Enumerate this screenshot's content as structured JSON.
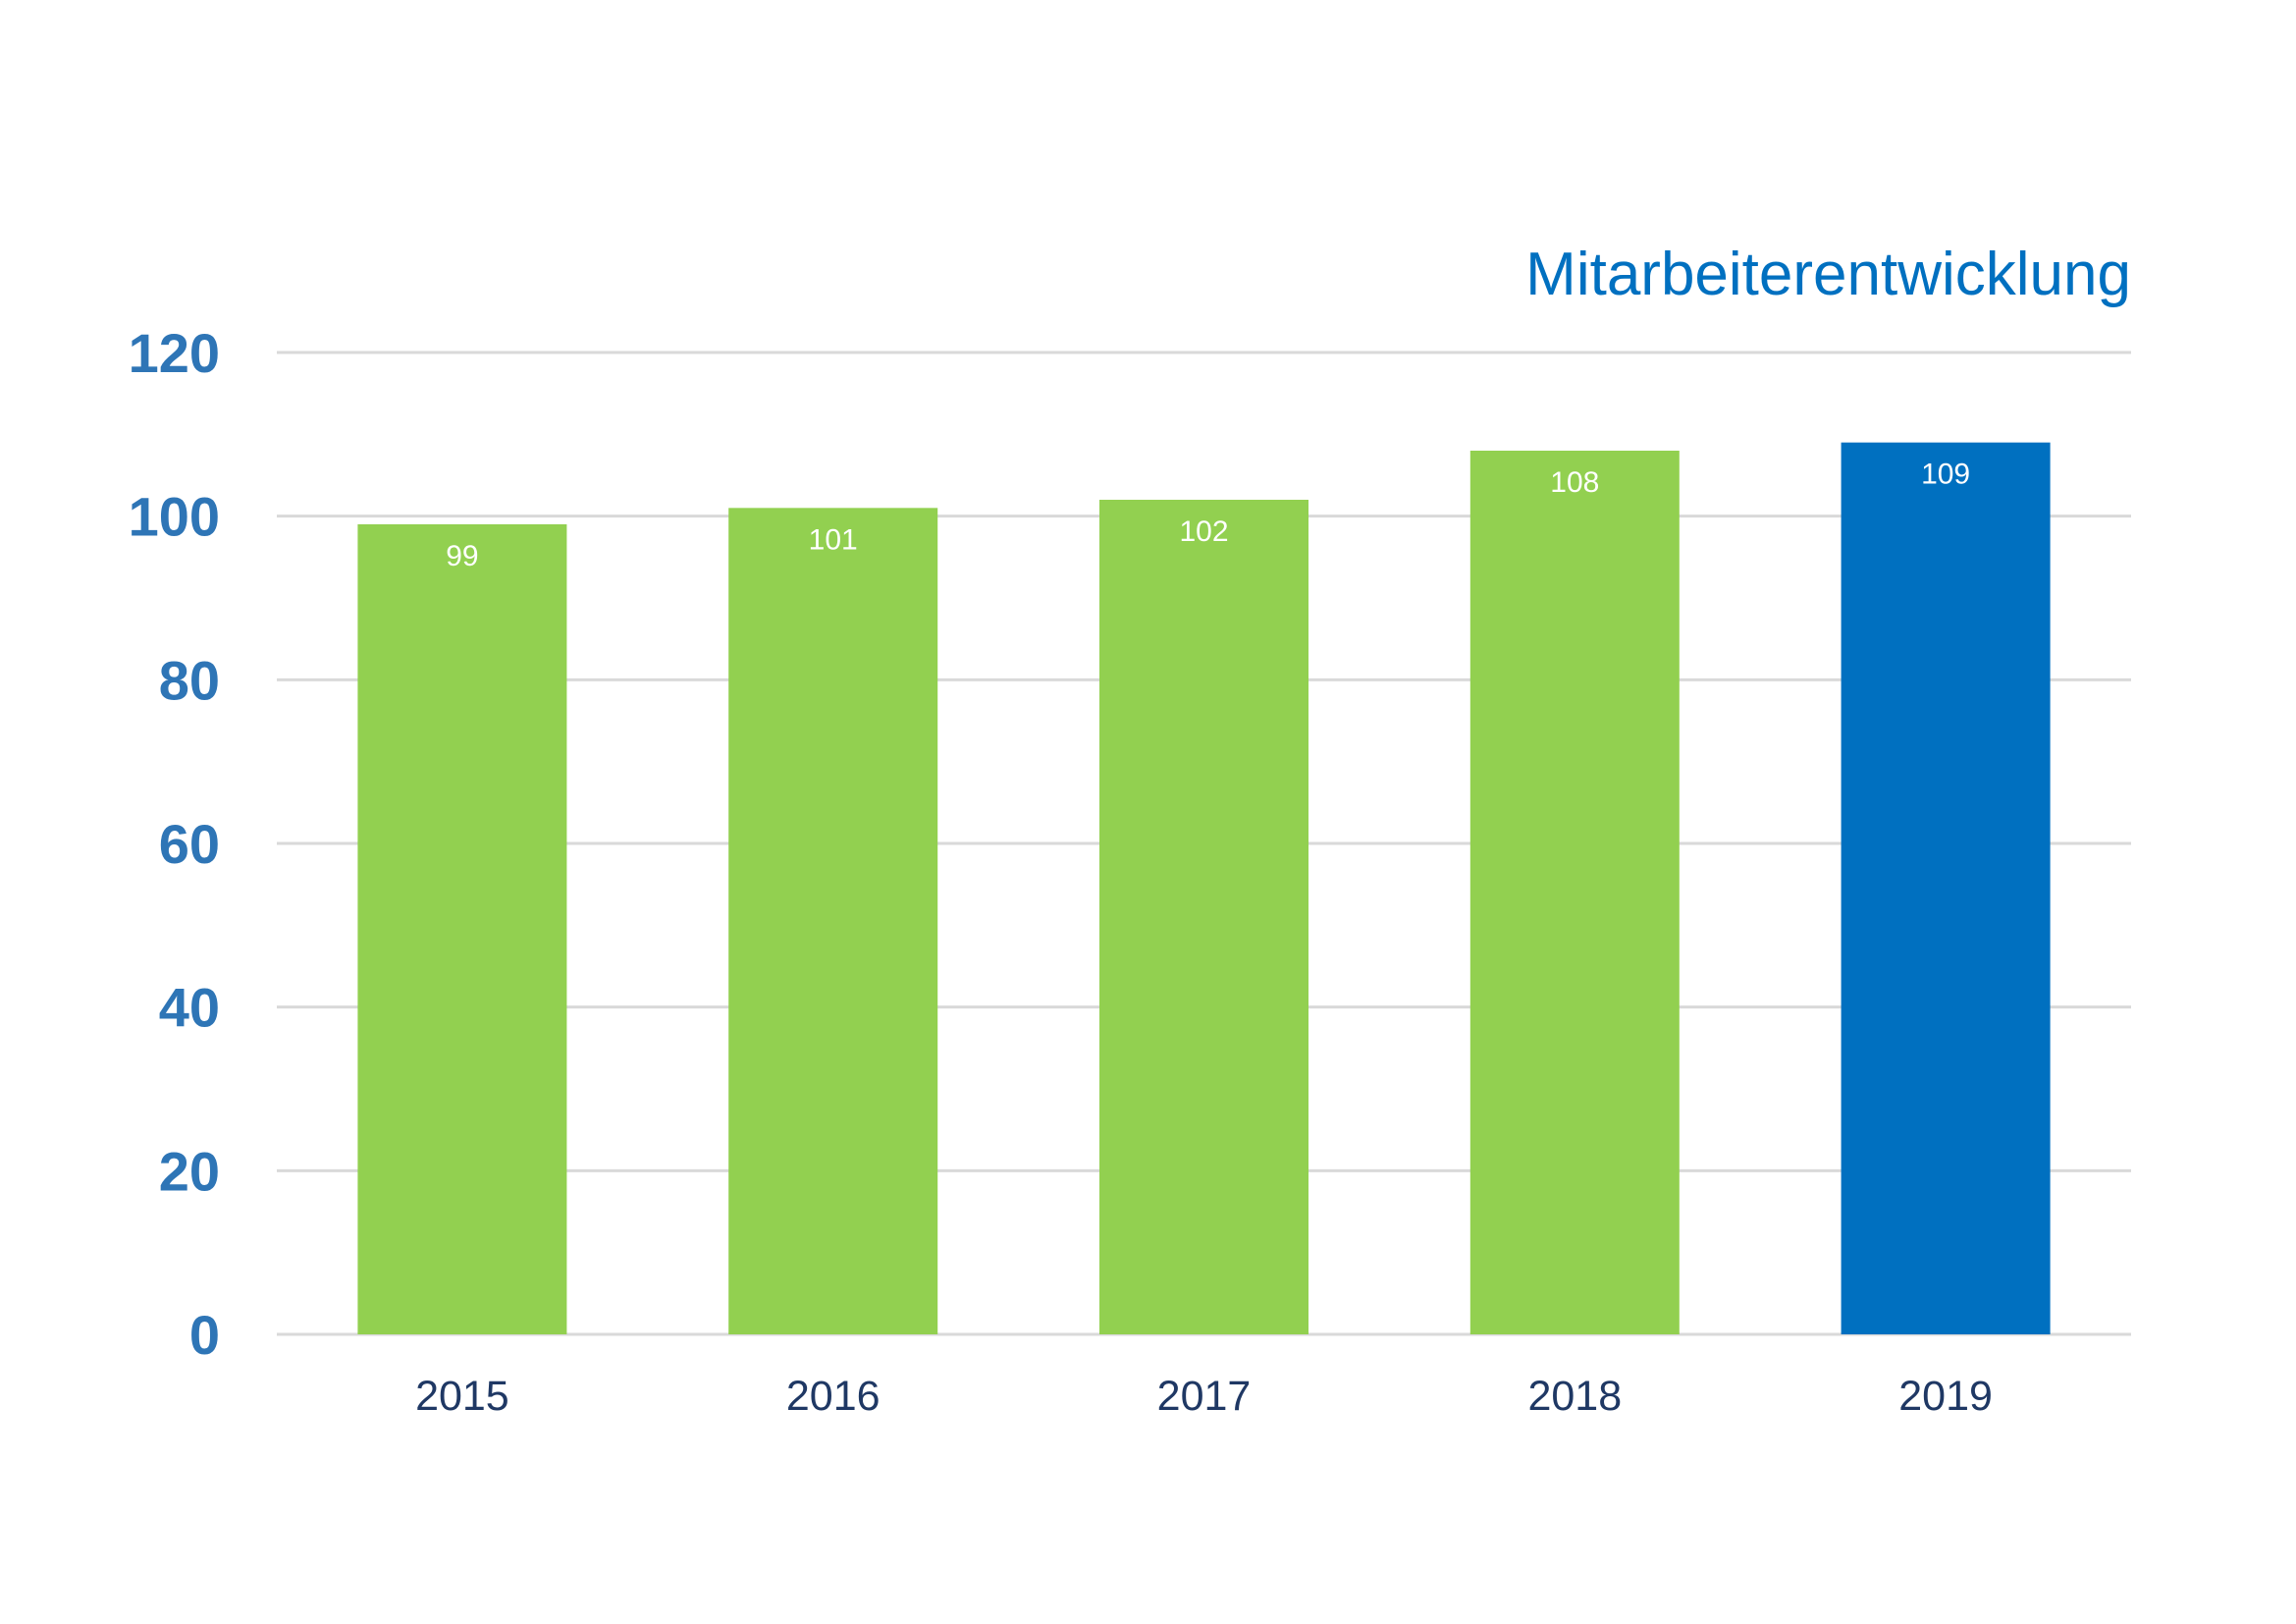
{
  "chart_data": {
    "type": "bar",
    "title": "Mitarbeiterentwicklung",
    "xlabel": "",
    "ylabel": "",
    "categories": [
      "2015",
      "2016",
      "2017",
      "2018",
      "2019"
    ],
    "values": [
      99,
      101,
      102,
      108,
      109
    ],
    "data_labels": [
      "99",
      "101",
      "102",
      "108",
      "109"
    ],
    "ylim": [
      0,
      120
    ],
    "y_ticks": [
      0,
      20,
      40,
      60,
      80,
      100,
      120
    ],
    "y_tick_labels": [
      "0",
      "20",
      "40",
      "60",
      "80",
      "100",
      "120"
    ],
    "grid": true,
    "legend": "none",
    "bar_colors": [
      "#92d050",
      "#92d050",
      "#92d050",
      "#92d050",
      "#0070c0"
    ]
  }
}
